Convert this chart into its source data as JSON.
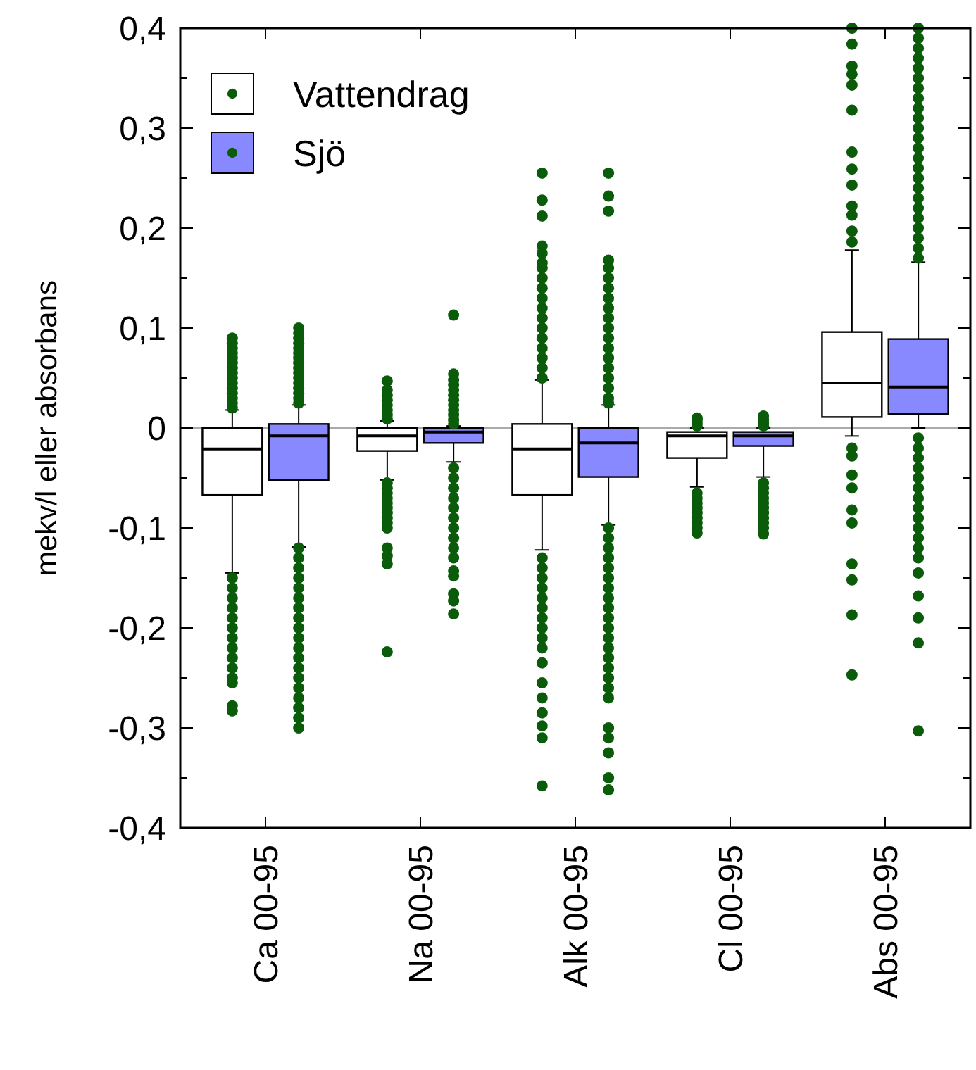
{
  "chart_data": {
    "type": "box",
    "ylabel": "mekv/l eller absorbans",
    "categories": [
      "Ca 00-95",
      "Na 00-95",
      "Alk 00-95",
      "Cl 00-95",
      "Abs 00-95"
    ],
    "ylim": [
      -0.4,
      0.4
    ],
    "yticks": [
      {
        "value": -0.4,
        "label": "-0,4"
      },
      {
        "value": -0.35,
        "label": null
      },
      {
        "value": -0.3,
        "label": "-0,3"
      },
      {
        "value": -0.25,
        "label": null
      },
      {
        "value": -0.2,
        "label": "-0,2"
      },
      {
        "value": -0.15,
        "label": null
      },
      {
        "value": -0.1,
        "label": "-0,1"
      },
      {
        "value": -0.05,
        "label": null
      },
      {
        "value": 0,
        "label": "0"
      },
      {
        "value": 0.05,
        "label": null
      },
      {
        "value": 0.1,
        "label": "0,1"
      },
      {
        "value": 0.15,
        "label": null
      },
      {
        "value": 0.2,
        "label": "0,2"
      },
      {
        "value": 0.25,
        "label": null
      },
      {
        "value": 0.3,
        "label": "0,3"
      },
      {
        "value": 0.35,
        "label": null
      },
      {
        "value": 0.4,
        "label": "0,4"
      }
    ],
    "grid": false,
    "legend": "top left",
    "marker": "circle",
    "ref_lines": [
      {
        "axis": "y",
        "value": 0,
        "color": "#aaaaaa"
      }
    ],
    "series": [
      {
        "name": "Vattendrag",
        "color": "#ffffff",
        "boxes": [
          {
            "low": -0.145,
            "q1": -0.067,
            "median": -0.021,
            "q3": 0,
            "high": 0.018,
            "outliers": [
              0.09,
              0.085,
              0.08,
              0.075,
              0.07,
              0.065,
              0.06,
              0.055,
              0.05,
              0.045,
              0.04,
              0.035,
              0.03,
              0.025,
              0.02,
              -0.15,
              -0.16,
              -0.17,
              -0.18,
              -0.19,
              -0.2,
              -0.21,
              -0.22,
              -0.23,
              -0.24,
              -0.25,
              -0.255,
              -0.278,
              -0.283
            ]
          },
          {
            "low": -0.052,
            "q1": -0.023,
            "median": -0.008,
            "q3": 0,
            "high": 0.007,
            "outliers": [
              0.047,
              0.038,
              0.033,
              0.028,
              0.023,
              0.018,
              0.013,
              0.009,
              -0.055,
              -0.06,
              -0.065,
              -0.07,
              -0.075,
              -0.08,
              -0.085,
              -0.09,
              -0.095,
              -0.1,
              -0.12,
              -0.128,
              -0.136,
              -0.224
            ]
          },
          {
            "low": -0.122,
            "q1": -0.067,
            "median": -0.021,
            "q3": 0.004,
            "high": 0.048,
            "outliers": [
              0.255,
              0.228,
              0.212,
              0.182,
              0.175,
              0.165,
              0.16,
              0.15,
              0.14,
              0.13,
              0.12,
              0.11,
              0.1,
              0.09,
              0.08,
              0.07,
              0.06,
              0.05,
              -0.13,
              -0.14,
              -0.15,
              -0.16,
              -0.17,
              -0.18,
              -0.19,
              -0.2,
              -0.21,
              -0.22,
              -0.235,
              -0.255,
              -0.27,
              -0.285,
              -0.298,
              -0.31,
              -0.358
            ]
          },
          {
            "low": -0.059,
            "q1": -0.03,
            "median": -0.008,
            "q3": -0.004,
            "high": 0,
            "outliers": [
              0.002,
              0.005,
              0.008,
              0.01,
              -0.065,
              -0.07,
              -0.075,
              -0.08,
              -0.085,
              -0.09,
              -0.095,
              -0.1,
              -0.105
            ]
          },
          {
            "low": -0.008,
            "q1": 0.011,
            "median": 0.045,
            "q3": 0.096,
            "high": 0.178,
            "outliers": [
              0.4,
              0.384,
              0.362,
              0.354,
              0.343,
              0.318,
              0.276,
              0.259,
              0.243,
              0.222,
              0.213,
              0.197,
              0.186,
              -0.02,
              -0.028,
              -0.047,
              -0.06,
              -0.082,
              -0.095,
              -0.136,
              -0.152,
              -0.187,
              -0.247
            ]
          }
        ]
      },
      {
        "name": "Sjö",
        "color": "#8888ff",
        "boxes": [
          {
            "low": -0.119,
            "q1": -0.052,
            "median": -0.008,
            "q3": 0.004,
            "high": 0.023,
            "outliers": [
              0.1,
              0.095,
              0.09,
              0.085,
              0.08,
              0.075,
              0.07,
              0.065,
              0.06,
              0.055,
              0.05,
              0.045,
              0.04,
              0.035,
              0.03,
              0.025,
              -0.12,
              -0.13,
              -0.14,
              -0.15,
              -0.16,
              -0.17,
              -0.18,
              -0.19,
              -0.2,
              -0.21,
              -0.22,
              -0.23,
              -0.24,
              -0.25,
              -0.26,
              -0.27,
              -0.28,
              -0.29,
              -0.3
            ]
          },
          {
            "low": -0.034,
            "q1": -0.015,
            "median": -0.004,
            "q3": 0,
            "high": 0.002,
            "outliers": [
              0.113,
              0.054,
              0.048,
              0.043,
              0.038,
              0.033,
              0.028,
              0.023,
              0.018,
              0.013,
              0.008,
              0.004,
              -0.04,
              -0.05,
              -0.06,
              -0.07,
              -0.08,
              -0.09,
              -0.1,
              -0.11,
              -0.12,
              -0.13,
              -0.143,
              -0.148,
              -0.166,
              -0.173,
              -0.186
            ]
          },
          {
            "low": -0.097,
            "q1": -0.049,
            "median": -0.015,
            "q3": 0,
            "high": 0.023,
            "outliers": [
              0.255,
              0.232,
              0.217,
              0.168,
              0.16,
              0.15,
              0.14,
              0.13,
              0.12,
              0.11,
              0.1,
              0.09,
              0.08,
              0.07,
              0.06,
              0.05,
              0.04,
              0.03,
              0.025,
              -0.1,
              -0.11,
              -0.12,
              -0.13,
              -0.14,
              -0.15,
              -0.16,
              -0.17,
              -0.18,
              -0.19,
              -0.2,
              -0.21,
              -0.22,
              -0.23,
              -0.24,
              -0.25,
              -0.26,
              -0.27,
              -0.3,
              -0.31,
              -0.325,
              -0.35,
              -0.362
            ]
          },
          {
            "low": -0.049,
            "q1": -0.018,
            "median": -0.008,
            "q3": -0.004,
            "high": 0,
            "outliers": [
              0.002,
              0.005,
              0.008,
              0.012,
              -0.055,
              -0.06,
              -0.065,
              -0.07,
              -0.075,
              -0.08,
              -0.085,
              -0.09,
              -0.095,
              -0.1,
              -0.106
            ]
          },
          {
            "low": 0,
            "q1": 0.014,
            "median": 0.041,
            "q3": 0.089,
            "high": 0.166,
            "outliers": [
              0.4,
              0.39,
              0.38,
              0.37,
              0.36,
              0.35,
              0.34,
              0.33,
              0.32,
              0.31,
              0.3,
              0.29,
              0.28,
              0.27,
              0.26,
              0.25,
              0.24,
              0.23,
              0.22,
              0.21,
              0.2,
              0.19,
              0.18,
              0.17,
              -0.01,
              -0.02,
              -0.03,
              -0.04,
              -0.05,
              -0.06,
              -0.07,
              -0.08,
              -0.09,
              -0.1,
              -0.11,
              -0.12,
              -0.13,
              -0.145,
              -0.168,
              -0.19,
              -0.215,
              -0.303
            ]
          }
        ]
      }
    ]
  }
}
